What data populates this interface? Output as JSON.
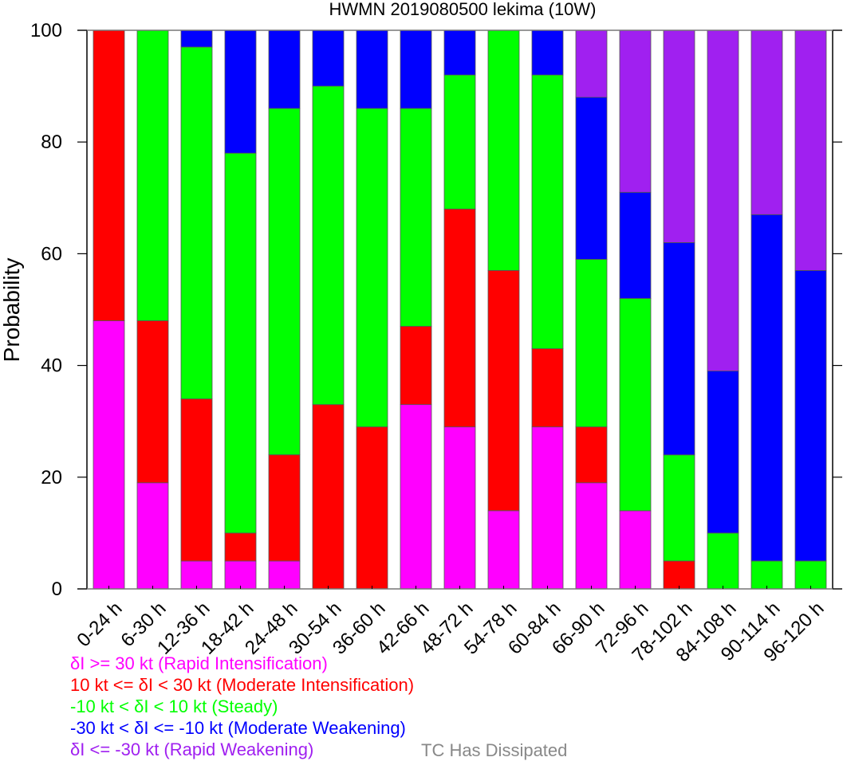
{
  "chart_data": {
    "type": "bar",
    "stacked": true,
    "title": "HWMN 2019080500 lekima (10W)",
    "xlabel": "",
    "ylabel": "Probability",
    "ylim": [
      0,
      100
    ],
    "yticks": [
      0,
      20,
      40,
      60,
      80,
      100
    ],
    "grid": false,
    "legend_position": "bottom",
    "categories": [
      "0-24 h",
      "6-30 h",
      "12-36 h",
      "18-42 h",
      "24-48 h",
      "30-54 h",
      "36-60 h",
      "42-66 h",
      "48-72 h",
      "54-78 h",
      "60-84 h",
      "66-90 h",
      "72-96 h",
      "78-102 h",
      "84-108 h",
      "90-114 h",
      "96-120 h"
    ],
    "series": [
      {
        "name": "δI >= 30 kt (Rapid Intensification)",
        "color": "#ff00ff",
        "values": [
          48,
          19,
          5,
          5,
          5,
          0,
          0,
          33,
          29,
          14,
          29,
          19,
          14,
          0,
          0,
          0,
          0
        ]
      },
      {
        "name": "10 kt <= δI < 30 kt (Moderate Intensification)",
        "color": "#ff0000",
        "values": [
          52,
          29,
          29,
          5,
          19,
          33,
          29,
          14,
          39,
          43,
          14,
          10,
          0,
          5,
          0,
          0,
          0
        ]
      },
      {
        "name": "-10 kt < δI < 10 kt (Steady)",
        "color": "#00ff00",
        "values": [
          0,
          52,
          63,
          68,
          62,
          57,
          57,
          39,
          24,
          43,
          49,
          30,
          38,
          19,
          10,
          5,
          5
        ]
      },
      {
        "name": "-30 kt < δI <= -10 kt (Moderate Weakening)",
        "color": "#0000ff",
        "values": [
          0,
          0,
          3,
          22,
          14,
          10,
          14,
          14,
          8,
          0,
          8,
          29,
          19,
          38,
          29,
          62,
          52
        ]
      },
      {
        "name": "δI <= -30 kt (Rapid Weakening)",
        "color": "#a020f0",
        "values": [
          0,
          0,
          0,
          0,
          0,
          0,
          0,
          0,
          0,
          0,
          0,
          12,
          29,
          38,
          61,
          33,
          43
        ]
      }
    ],
    "extra_legend": {
      "name": "TC Has Dissipated",
      "color": "#888888"
    }
  }
}
